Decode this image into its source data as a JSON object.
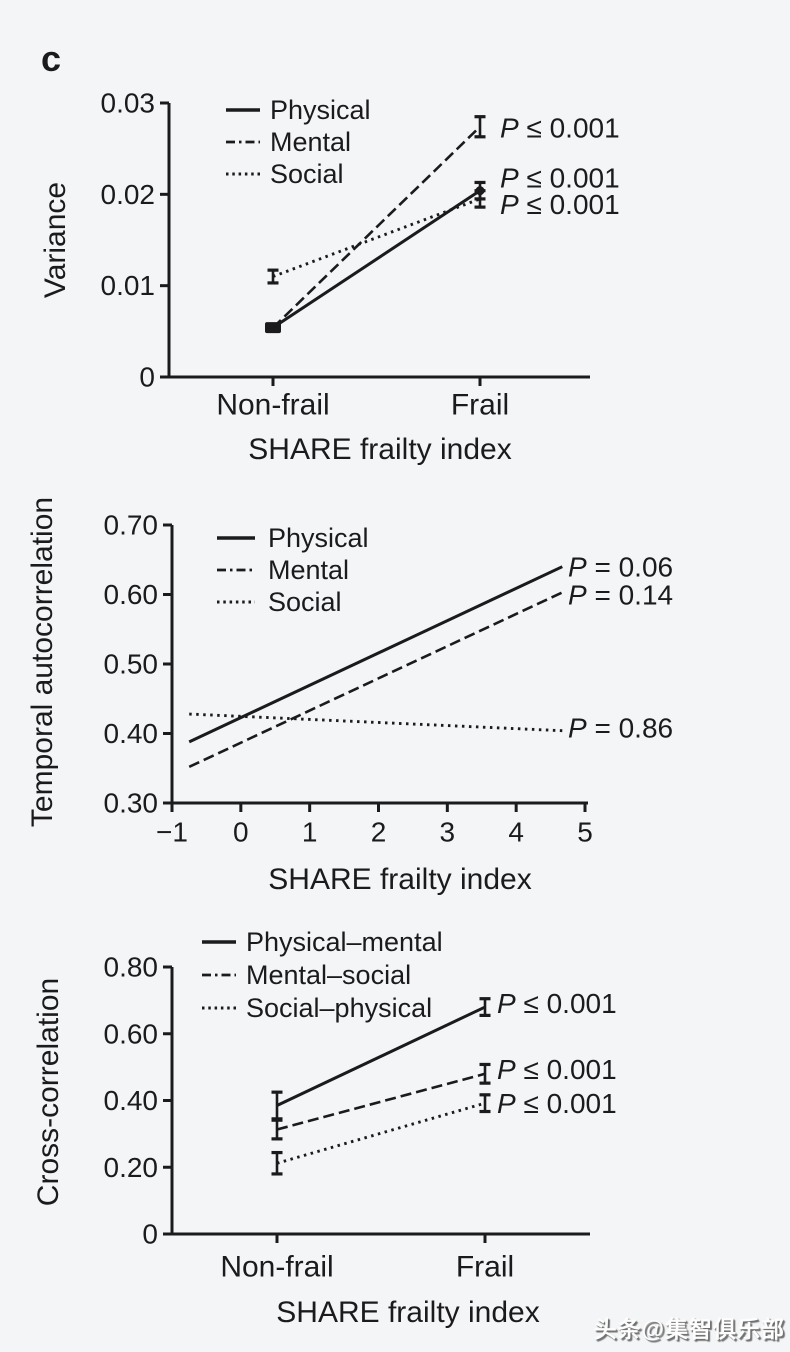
{
  "page": {
    "panel_label": "c",
    "watermark": "头条@集智俱乐部",
    "background_color": "#f3f5f7",
    "ink_color": "#1b1b1d"
  },
  "chart_data": [
    {
      "type": "line",
      "id": "variance-vs-frailty",
      "ylabel": "Variance",
      "xlabel": "SHARE frailty index",
      "x_mode": "categorical",
      "categories": [
        "Non-frail",
        "Frail"
      ],
      "ylim": [
        0,
        0.03
      ],
      "yticks": [
        0,
        0.01,
        0.02,
        0.03
      ],
      "ytick_labels": [
        "0",
        "0.01",
        "0.02",
        "0.03"
      ],
      "grid": false,
      "legend_position": "top-left-inside",
      "series": [
        {
          "name": "Physical",
          "line_style": "solid",
          "values": [
            0.0054,
            0.0204
          ],
          "errors": [
            0.0003,
            0.0009
          ],
          "markers": [
            "square",
            "dot"
          ],
          "p_label": "P ≤ 0.001",
          "p_label_dy": -13
        },
        {
          "name": "Mental",
          "line_style": "dashed",
          "values": [
            0.0054,
            0.0274
          ],
          "errors": [
            0.0003,
            0.0011
          ],
          "markers": [
            null,
            null
          ],
          "p_label": "P ≤ 0.001",
          "p_label_dy": 1
        },
        {
          "name": "Social",
          "line_style": "dotted",
          "values": [
            0.011,
            0.0195
          ],
          "errors": [
            0.0007,
            0.0009
          ],
          "markers": [
            null,
            null
          ],
          "p_label": "P ≤ 0.001",
          "p_label_dy": 5
        }
      ]
    },
    {
      "type": "line",
      "id": "temporal-autocorrelation-vs-frailty",
      "ylabel": "Temporal autocorrelation",
      "xlabel": "SHARE frailty index",
      "x_mode": "numeric",
      "xlim": [
        -1,
        5
      ],
      "xticks": [
        -1,
        0,
        1,
        2,
        3,
        4,
        5
      ],
      "xtick_labels": [
        "−1",
        "0",
        "1",
        "2",
        "3",
        "4",
        "5"
      ],
      "ylim": [
        0.3,
        0.7
      ],
      "yticks": [
        0.3,
        0.4,
        0.5,
        0.6,
        0.7
      ],
      "ytick_labels": [
        "0.30",
        "0.40",
        "0.50",
        "0.60",
        "0.70"
      ],
      "grid": false,
      "legend_position": "top-left-inside",
      "series": [
        {
          "name": "Physical",
          "line_style": "solid",
          "x": [
            -0.75,
            4.67
          ],
          "values": [
            0.388,
            0.64
          ],
          "p_label": "P = 0.06",
          "p_label_dy": 0
        },
        {
          "name": "Mental",
          "line_style": "dashed",
          "x": [
            -0.75,
            4.67
          ],
          "values": [
            0.352,
            0.603
          ],
          "p_label": "P = 0.14",
          "p_label_dy": 2
        },
        {
          "name": "Social",
          "line_style": "dotted",
          "x": [
            -0.75,
            4.67
          ],
          "values": [
            0.428,
            0.404
          ],
          "p_label": "P = 0.86",
          "p_label_dy": -3
        }
      ]
    },
    {
      "type": "line",
      "id": "cross-correlation-vs-frailty",
      "ylabel": "Cross-correlation",
      "xlabel": "SHARE frailty index",
      "x_mode": "categorical",
      "categories": [
        "Non-frail",
        "Frail"
      ],
      "ylim": [
        0,
        0.8
      ],
      "yticks": [
        0,
        0.2,
        0.4,
        0.6,
        0.8
      ],
      "ytick_labels": [
        "0",
        "0.20",
        "0.40",
        "0.60",
        "0.80"
      ],
      "grid": false,
      "legend_position": "top-left-inside",
      "series": [
        {
          "name": "Physical–mental",
          "line_style": "solid",
          "values": [
            0.385,
            0.68
          ],
          "errors": [
            0.04,
            0.025
          ],
          "markers": [
            null,
            null
          ],
          "p_label": "P ≤ 0.001",
          "p_label_dy": -4
        },
        {
          "name": "Mental–social",
          "line_style": "dashed",
          "values": [
            0.313,
            0.48
          ],
          "errors": [
            0.028,
            0.028
          ],
          "markers": [
            null,
            null
          ],
          "p_label": "P ≤ 0.001",
          "p_label_dy": -5
        },
        {
          "name": "Social–physical",
          "line_style": "dotted",
          "values": [
            0.212,
            0.392
          ],
          "errors": [
            0.032,
            0.025
          ],
          "markers": [
            null,
            null
          ],
          "p_label": "P ≤ 0.001",
          "p_label_dy": 0
        }
      ]
    }
  ]
}
